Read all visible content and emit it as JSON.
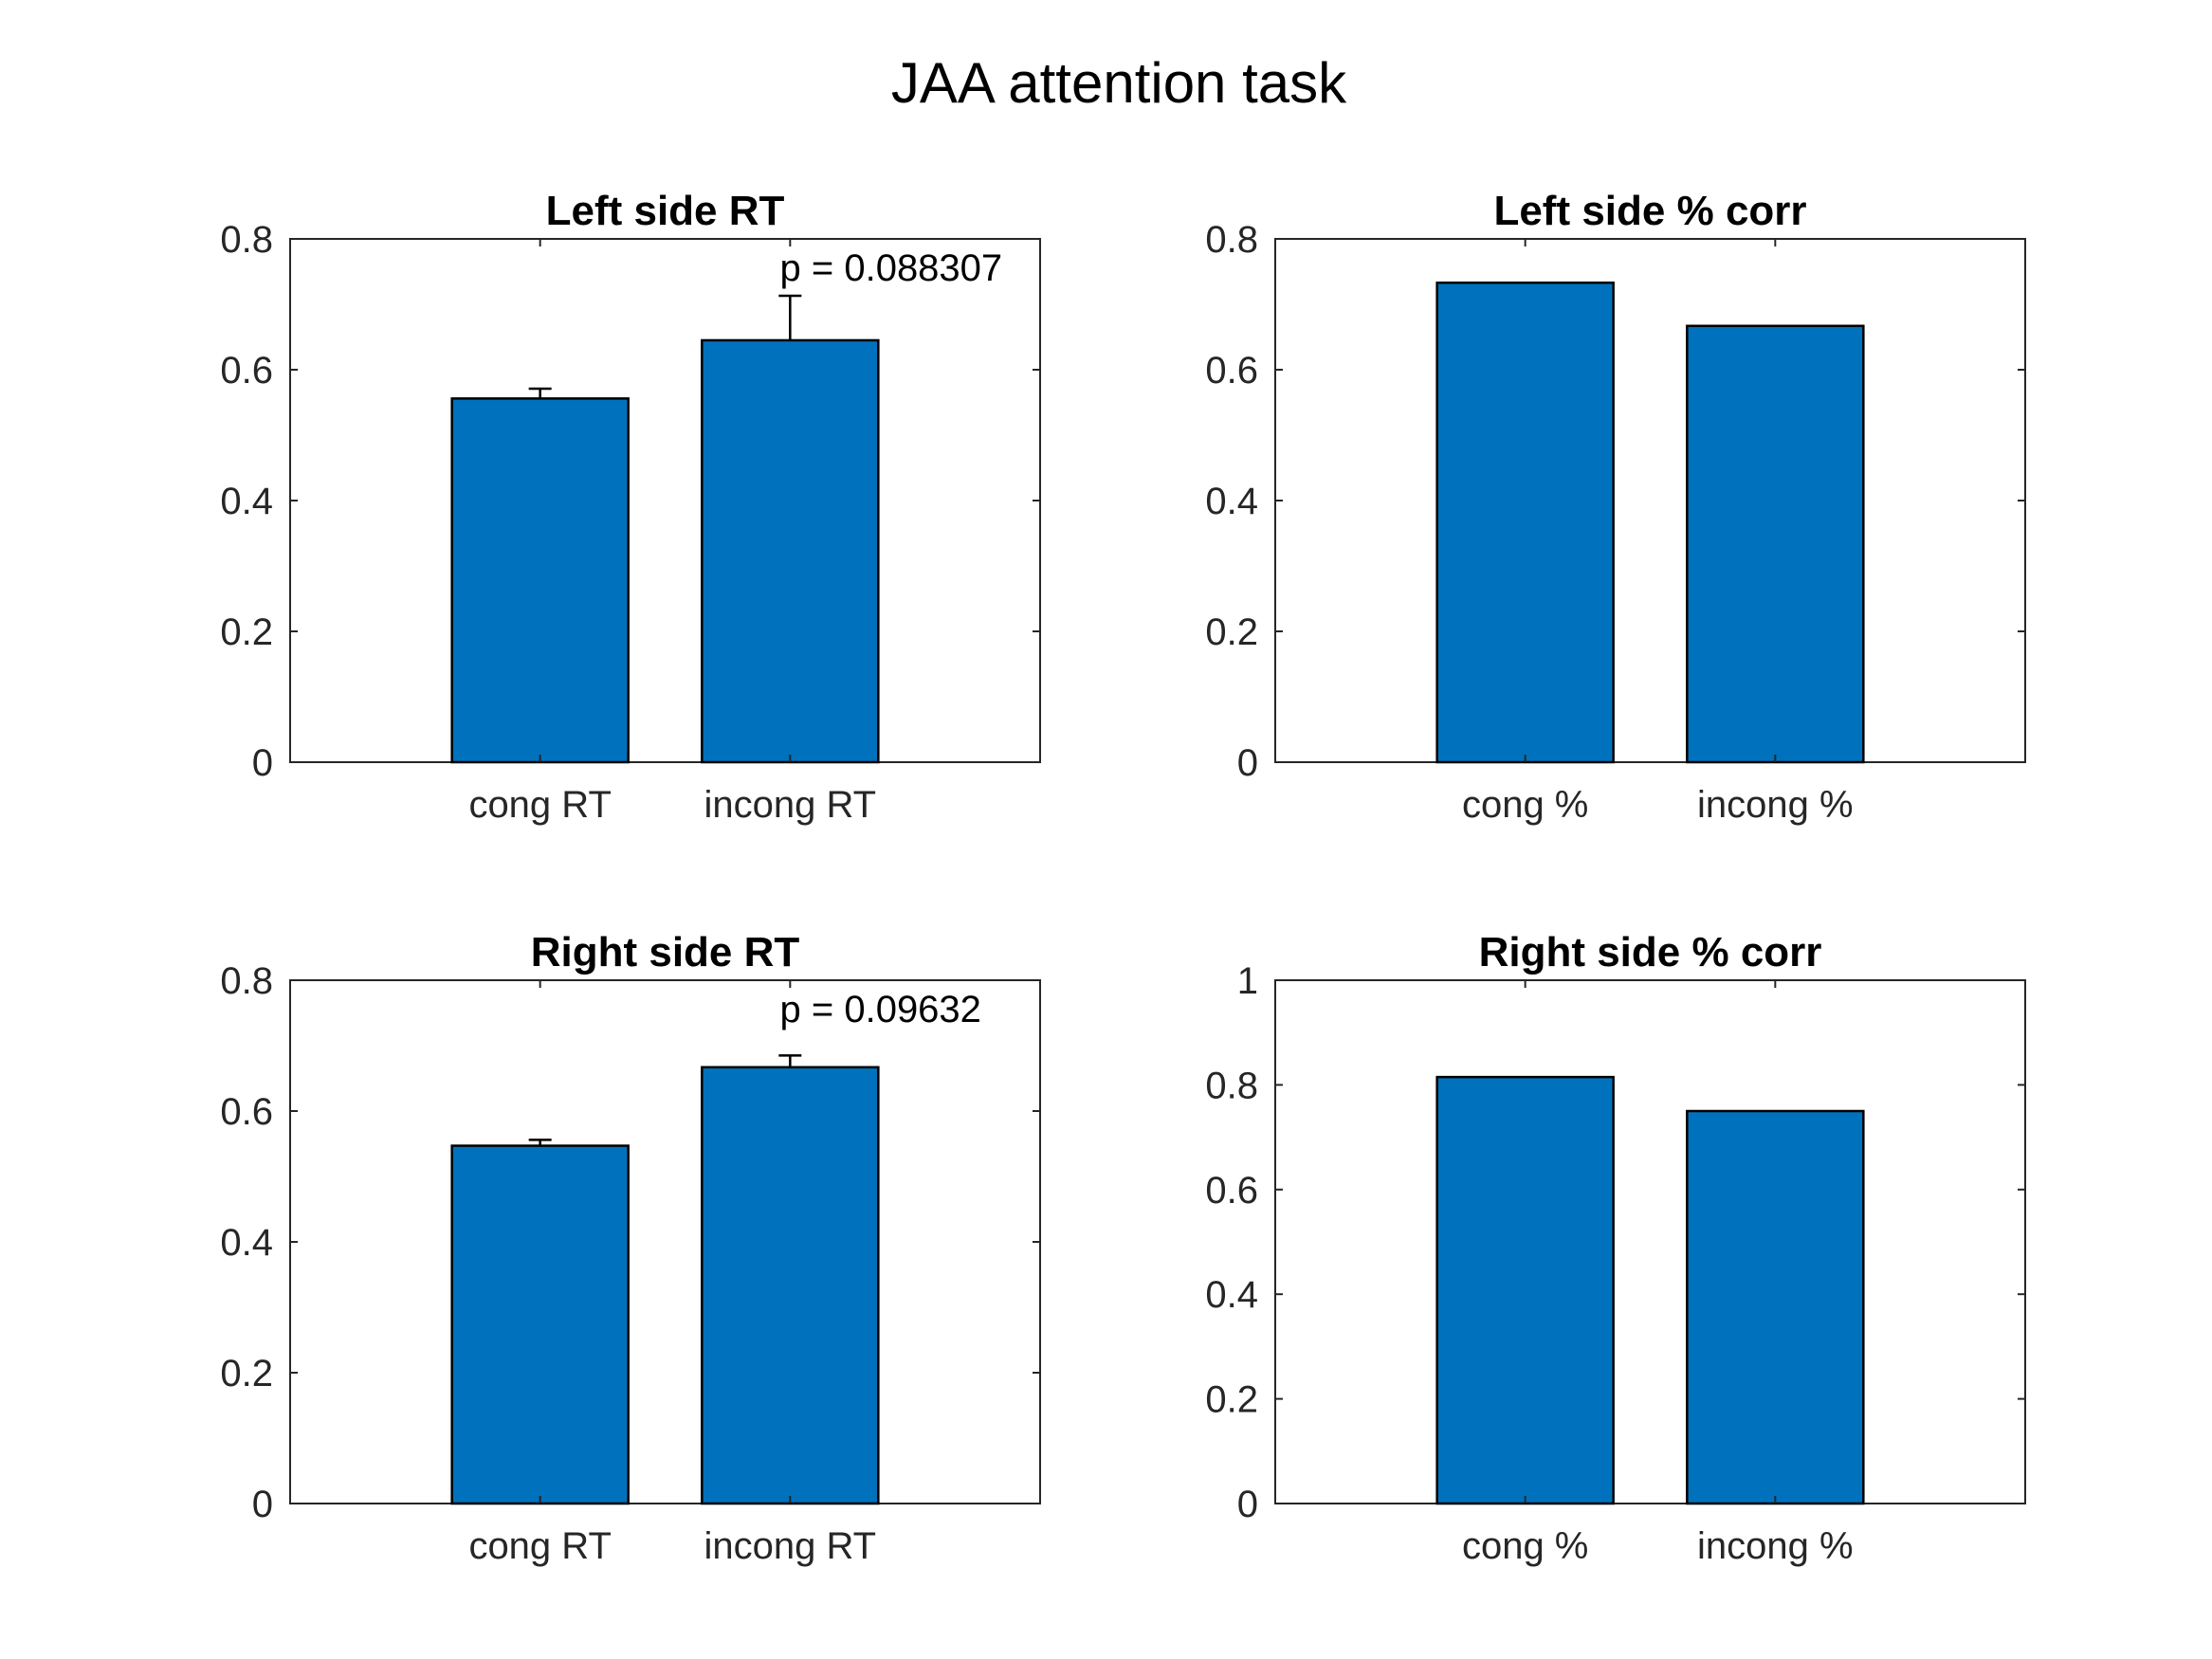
{
  "figure": {
    "title": "JAA attention task"
  },
  "chart_data": [
    {
      "type": "bar",
      "title": "Left side RT",
      "categories": [
        "cong RT",
        "incong RT"
      ],
      "values": [
        0.556,
        0.645
      ],
      "errors": [
        0.015,
        0.068
      ],
      "annotation": "p = 0.088307",
      "ylim": [
        0,
        0.8
      ],
      "yticks": [
        0,
        0.2,
        0.4,
        0.6,
        0.8
      ],
      "ytick_labels": [
        "0",
        "0.2",
        "0.4",
        "0.6",
        "0.8"
      ],
      "xlim": [
        0,
        3
      ],
      "bar_color": "#0072BD",
      "grid": false
    },
    {
      "type": "bar",
      "title": "Left side % corr",
      "categories": [
        "cong %",
        "incong %"
      ],
      "values": [
        0.733,
        0.667
      ],
      "ylim": [
        0,
        0.8
      ],
      "yticks": [
        0,
        0.2,
        0.4,
        0.6,
        0.8
      ],
      "ytick_labels": [
        "0",
        "0.2",
        "0.4",
        "0.6",
        "0.8"
      ],
      "xlim": [
        0,
        3
      ],
      "bar_color": "#0072BD",
      "grid": false
    },
    {
      "type": "bar",
      "title": "Right side RT",
      "categories": [
        "cong RT",
        "incong RT"
      ],
      "values": [
        0.547,
        0.667
      ],
      "errors": [
        0.009,
        0.018
      ],
      "annotation": "p = 0.09632",
      "ylim": [
        0,
        0.8
      ],
      "yticks": [
        0,
        0.2,
        0.4,
        0.6,
        0.8
      ],
      "ytick_labels": [
        "0",
        "0.2",
        "0.4",
        "0.6",
        "0.8"
      ],
      "xlim": [
        0,
        3
      ],
      "bar_color": "#0072BD",
      "grid": false
    },
    {
      "type": "bar",
      "title": "Right side % corr",
      "categories": [
        "cong %",
        "incong %"
      ],
      "values": [
        0.815,
        0.75
      ],
      "ylim": [
        0,
        1
      ],
      "yticks": [
        0,
        0.2,
        0.4,
        0.6,
        0.8,
        1
      ],
      "ytick_labels": [
        "0",
        "0.2",
        "0.4",
        "0.6",
        "0.8",
        "1"
      ],
      "xlim": [
        0,
        3
      ],
      "bar_color": "#0072BD",
      "grid": false
    }
  ]
}
